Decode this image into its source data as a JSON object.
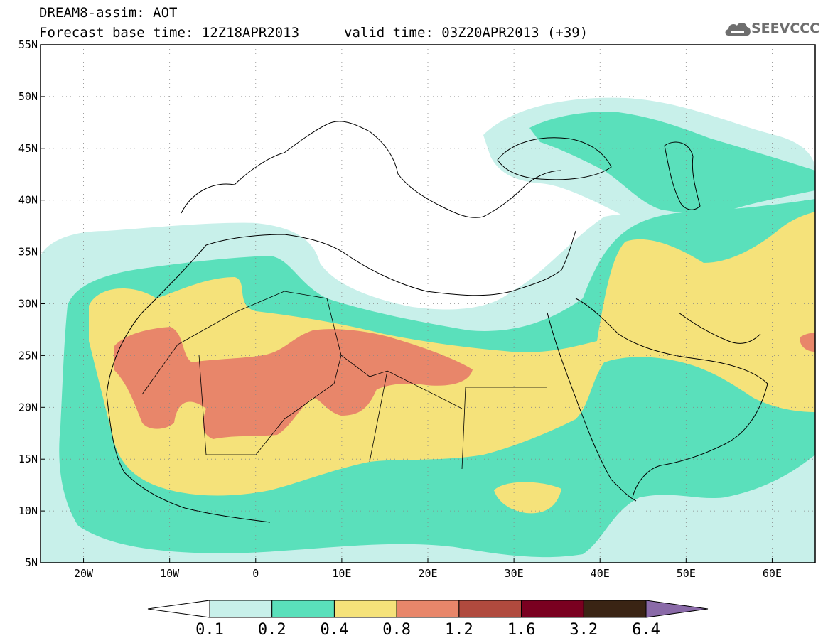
{
  "header": {
    "title_line1": "DREAM8-assim: AOT",
    "title_line2": "Forecast base time: 12Z18APR2013",
    "valid_time": "valid time: 03Z20APR2013 (+39)",
    "logo_text": "SEEVCCC",
    "logo_icon": "cloud-icon"
  },
  "map": {
    "projection": "lat-lon",
    "lon_range": [
      -25,
      65
    ],
    "lat_range": [
      5,
      55
    ],
    "lat_ticks": [
      {
        "value": 55,
        "label": "55N"
      },
      {
        "value": 50,
        "label": "50N"
      },
      {
        "value": 45,
        "label": "45N"
      },
      {
        "value": 40,
        "label": "40N"
      },
      {
        "value": 35,
        "label": "35N"
      },
      {
        "value": 30,
        "label": "30N"
      },
      {
        "value": 25,
        "label": "25N"
      },
      {
        "value": 20,
        "label": "20N"
      },
      {
        "value": 15,
        "label": "15N"
      },
      {
        "value": 10,
        "label": "10N"
      },
      {
        "value": 5,
        "label": "5N"
      }
    ],
    "lon_ticks": [
      {
        "value": -20,
        "label": "20W"
      },
      {
        "value": -10,
        "label": "10W"
      },
      {
        "value": 0,
        "label": "0"
      },
      {
        "value": 10,
        "label": "10E"
      },
      {
        "value": 20,
        "label": "20E"
      },
      {
        "value": 30,
        "label": "30E"
      },
      {
        "value": 40,
        "label": "40E"
      },
      {
        "value": 50,
        "label": "50E"
      },
      {
        "value": 60,
        "label": "60E"
      }
    ],
    "grid": true,
    "colors": {
      "ocean_land": "#ffffff",
      "level_0_1": "#c8f0ea",
      "level_0_2": "#5ae0bb",
      "level_0_4": "#f5e27a",
      "level_0_8": "#e8866a",
      "coastline": "#000000"
    }
  },
  "colorbar": {
    "labels": [
      "0.1",
      "0.2",
      "0.4",
      "0.8",
      "1.2",
      "1.6",
      "3.2",
      "6.4"
    ],
    "colors": [
      "#ffffff",
      "#c8f0ea",
      "#5ae0bb",
      "#f5e27a",
      "#e8866a",
      "#b04a3e",
      "#7a0020",
      "#3a2414",
      "#8a6aa8"
    ]
  }
}
